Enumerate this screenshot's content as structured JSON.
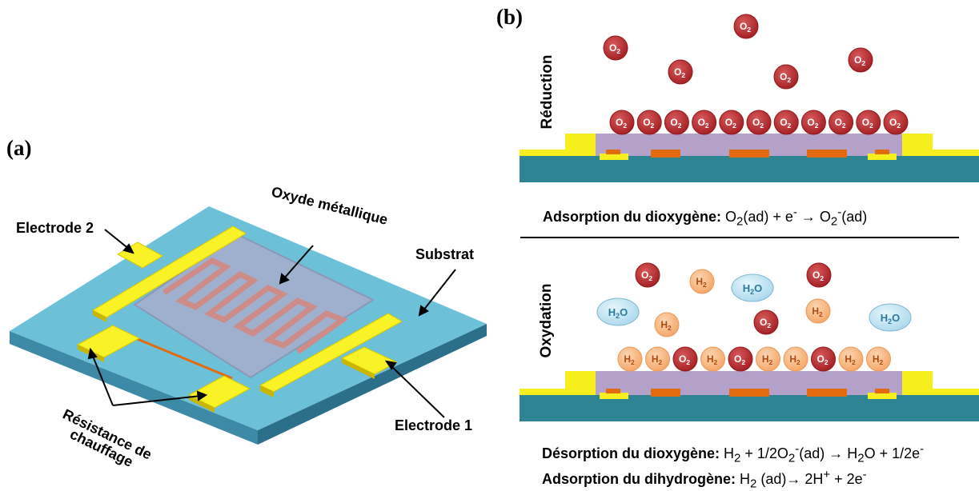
{
  "panel_a": {
    "label": "(a)",
    "callouts": {
      "electrode2": "Electrode 2",
      "oxide": "Oxyde métallique",
      "substrate": "Substrat",
      "electrode1": "Electrode 1",
      "heater_line1": "Résistance de",
      "heater_line2": "chauffage"
    },
    "colors": {
      "substrate": "#6cc1d9",
      "electrode": "#f8f227",
      "oxide": "#9fb0cf",
      "meander": "#cd8c88"
    }
  },
  "panel_b": {
    "label": "(b)",
    "top_side_label": "Réduction",
    "bottom_side_label": "Oxydation",
    "eq_top": {
      "bold": "Adsorption du dioxygène:",
      "p1": " O",
      "s1": "2",
      "p2": "(ad) + e",
      "s2": "-",
      "p3": " → O",
      "s3": "2",
      "s4": "-",
      "p4": "(ad)"
    },
    "eq_mid": {
      "bold": "Désorption du dioxygène:",
      "p1": " H",
      "s1": "2",
      "p2": " + 1/2O",
      "s2": "2",
      "s3": "-",
      "p3": "(ad) → H",
      "s4": "2",
      "p4": "O + 1/2e",
      "s5": "-"
    },
    "eq_bot": {
      "bold": "Adsorption du dihydrogène:",
      "p1": " H",
      "s1": "2",
      "p2": " (ad)→ 2H",
      "s2": "+",
      "p3": " +  2e",
      "s3": "-"
    },
    "molecule_labels": {
      "o2": "O",
      "h2": "H",
      "h2o_h": "H",
      "h2o_o": "O",
      "sub": "2"
    },
    "colors": {
      "o2": "#b5282a",
      "h2": "#f7b47c",
      "h2o": "#bfe2f2",
      "layer": "#b3a1c9",
      "substrate": "#2f8493",
      "electrode": "#f7ee1e",
      "heater": "#e26b10"
    }
  }
}
